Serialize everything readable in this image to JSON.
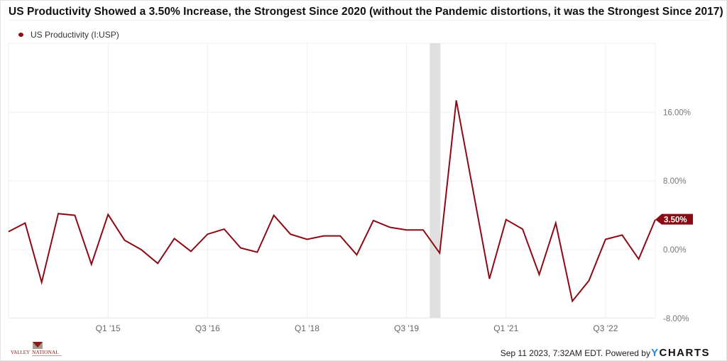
{
  "title": "US Productivity Showed a 3.50% Increase, the Strongest Since 2020 (without the Pandemic distortions, it was the Strongest Since 2017)",
  "legend": {
    "label": "US Productivity (I:USP)",
    "color": "#8b0a13"
  },
  "footer": {
    "timestamp": "Sep 11 2023, 7:32AM EDT. Powered by",
    "brand_y": "Y",
    "brand_rest": "CHARTS"
  },
  "logo": {
    "text_left": "VALLEY",
    "text_right": "NATIONAL"
  },
  "chart_data": {
    "type": "line",
    "title": "US Productivity Showed a 3.50% Increase, the Strongest Since 2020 (without the Pandemic distortions, it was the Strongest Since 2017)",
    "xlabel": "",
    "ylabel": "",
    "ylim": [
      -8,
      24
    ],
    "yticks": [
      -8,
      0,
      8,
      16
    ],
    "ytick_labels": [
      "-8.00%",
      "0.00%",
      "8.00%",
      "16.00%"
    ],
    "xtick_labels": [
      "Q1 '15",
      "Q3 '16",
      "Q1 '18",
      "Q3 '19",
      "Q1 '21",
      "Q3 '22"
    ],
    "xtick_index": [
      6,
      12,
      18,
      24,
      30,
      36
    ],
    "grid": true,
    "legend_position": "top-left",
    "recession_band_index": [
      25.4,
      26.0
    ],
    "last_value_label": "3.50%",
    "series": [
      {
        "name": "US Productivity (I:USP)",
        "color": "#8b0a13",
        "x": [
          "Q3 '13",
          "Q4 '13",
          "Q1 '14",
          "Q2 '14",
          "Q3 '14",
          "Q4 '14",
          "Q1 '15",
          "Q2 '15",
          "Q3 '15",
          "Q4 '15",
          "Q1 '16",
          "Q2 '16",
          "Q3 '16",
          "Q4 '16",
          "Q1 '17",
          "Q2 '17",
          "Q3 '17",
          "Q4 '17",
          "Q1 '18",
          "Q2 '18",
          "Q3 '18",
          "Q4 '18",
          "Q1 '19",
          "Q2 '19",
          "Q3 '19",
          "Q4 '19",
          "Q1 '20",
          "Q2 '20",
          "Q3 '20",
          "Q4 '20",
          "Q1 '21",
          "Q2 '21",
          "Q3 '21",
          "Q4 '21",
          "Q1 '22",
          "Q2 '22",
          "Q3 '22",
          "Q4 '22",
          "Q1 '23",
          "Q2 '23"
        ],
        "values": [
          2.1,
          3.1,
          -3.8,
          4.2,
          4.0,
          -1.7,
          4.1,
          1.1,
          0.0,
          -1.6,
          1.3,
          -0.2,
          1.8,
          2.4,
          0.2,
          -0.3,
          4.0,
          1.8,
          1.2,
          1.6,
          1.6,
          -0.6,
          3.4,
          2.6,
          2.3,
          2.3,
          -0.4,
          17.4,
          7.0,
          -3.4,
          3.5,
          2.4,
          -2.9,
          3.1,
          -6.0,
          -3.6,
          1.2,
          1.7,
          -1.1,
          3.5
        ]
      }
    ]
  }
}
